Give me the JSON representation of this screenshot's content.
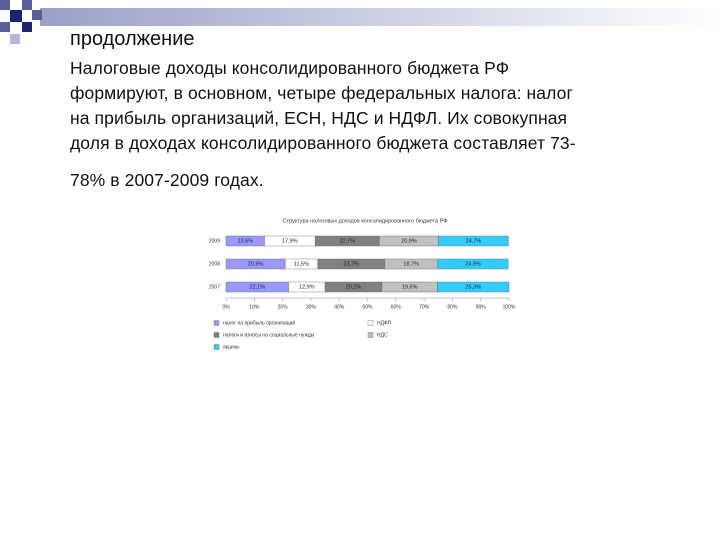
{
  "header": {
    "title": "продолжение"
  },
  "body": {
    "lines": [
      "Налоговые доходы консолидированного бюджета РФ",
      "формируют, в основном,  четыре федеральных налога:  налог",
      "на прибыль организаций, ЕСН, НДС и НДФЛ. Их совокупная",
      "доля в доходах консолидированного бюджета составляет 73-",
      "78% в 2007-2009 годах."
    ]
  },
  "chart_data": {
    "type": "stacked-barh",
    "title": "Структура налоговых доходов консолидированного бюджета РФ",
    "categories": [
      "2009",
      "2008",
      "2007"
    ],
    "series": [
      {
        "name": "налог на прибыль организаций",
        "color": "#9999ff",
        "values": [
          13.6,
          20.9,
          22.1
        ],
        "value_labels": [
          "13,6%",
          "20,9%",
          "22,1%"
        ]
      },
      {
        "name": "НДФЛ",
        "color": "#ffffff",
        "values": [
          17.9,
          11.5,
          12.9
        ],
        "value_labels": [
          "17,9%",
          "11,5%",
          "12,9%"
        ]
      },
      {
        "name": "налоги и взносы на социальные нужды",
        "color": "#808080",
        "values": [
          22.7,
          23.7,
          20.1
        ],
        "value_labels": [
          "22,7%",
          "23,7%",
          "20,1%"
        ]
      },
      {
        "name": "НДС",
        "color": "#c0c0c0",
        "values": [
          20.9,
          18.7,
          19.6
        ],
        "value_labels": [
          "20,9%",
          "18,7%",
          "19,6%"
        ]
      },
      {
        "name": "акцизы",
        "color": "#33ccff",
        "values": [
          24.7,
          24.9,
          25.3
        ],
        "value_labels": [
          "24,7%",
          "24,9%",
          "25,3%"
        ]
      }
    ],
    "xlim": [
      0,
      100
    ],
    "xticks": [
      {
        "value": 0,
        "label": "0%"
      },
      {
        "value": 10,
        "label": "10%"
      },
      {
        "value": 20,
        "label": "20%"
      },
      {
        "value": 30,
        "label": "30%"
      },
      {
        "value": 40,
        "label": "40%"
      },
      {
        "value": 50,
        "label": "50%"
      },
      {
        "value": 60,
        "label": "60%"
      },
      {
        "value": 70,
        "label": "70%"
      },
      {
        "value": 80,
        "label": "80%"
      },
      {
        "value": 90,
        "label": "90%"
      },
      {
        "value": 100,
        "label": "100%"
      }
    ]
  }
}
